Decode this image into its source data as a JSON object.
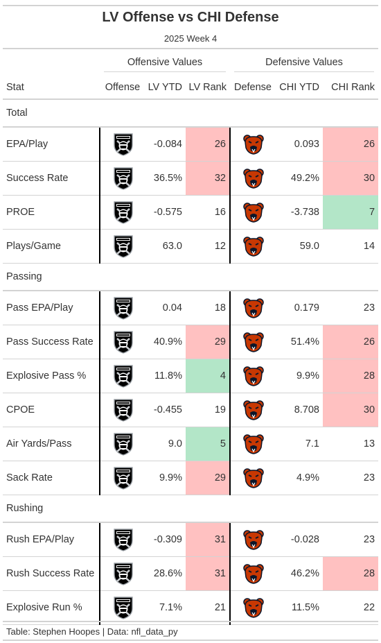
{
  "header": {
    "title": "LV Offense vs CHI Defense",
    "subtitle": "2025 Week 4"
  },
  "spanners": {
    "offense": "Offensive Values",
    "defense": "Defensive Values"
  },
  "columns": [
    "Stat",
    "Offense",
    "LV YTD",
    "LV Rank",
    "Defense",
    "CHI YTD",
    "CHI Rank"
  ],
  "colors": {
    "bad": "#ffc1c1",
    "good": "#b3e6c8",
    "raiders_logo": "#000000",
    "bears_logo_orange": "#c83803",
    "bears_logo_navy": "#0b162a"
  },
  "groups": [
    {
      "name": "Total",
      "rows": [
        {
          "stat": "EPA/Play",
          "lv_ytd": "-0.084",
          "lv_rank": "26",
          "lv_hl": "bad",
          "chi_ytd": "0.093",
          "chi_rank": "26",
          "chi_hl": "bad"
        },
        {
          "stat": "Success Rate",
          "lv_ytd": "36.5%",
          "lv_rank": "32",
          "lv_hl": "bad",
          "chi_ytd": "49.2%",
          "chi_rank": "30",
          "chi_hl": "bad"
        },
        {
          "stat": "PROE",
          "lv_ytd": "-0.575",
          "lv_rank": "16",
          "lv_hl": "",
          "chi_ytd": "-3.738",
          "chi_rank": "7",
          "chi_hl": "good"
        },
        {
          "stat": "Plays/Game",
          "lv_ytd": "63.0",
          "lv_rank": "12",
          "lv_hl": "",
          "chi_ytd": "59.0",
          "chi_rank": "14",
          "chi_hl": ""
        }
      ]
    },
    {
      "name": "Passing",
      "rows": [
        {
          "stat": "Pass EPA/Play",
          "lv_ytd": "0.04",
          "lv_rank": "18",
          "lv_hl": "",
          "chi_ytd": "0.179",
          "chi_rank": "23",
          "chi_hl": ""
        },
        {
          "stat": "Pass Success Rate",
          "lv_ytd": "40.9%",
          "lv_rank": "29",
          "lv_hl": "bad",
          "chi_ytd": "51.4%",
          "chi_rank": "26",
          "chi_hl": "bad"
        },
        {
          "stat": "Explosive Pass %",
          "lv_ytd": "11.8%",
          "lv_rank": "4",
          "lv_hl": "good",
          "chi_ytd": "9.9%",
          "chi_rank": "28",
          "chi_hl": "bad"
        },
        {
          "stat": "CPOE",
          "lv_ytd": "-0.455",
          "lv_rank": "19",
          "lv_hl": "",
          "chi_ytd": "8.708",
          "chi_rank": "30",
          "chi_hl": "bad"
        },
        {
          "stat": "Air Yards/Pass",
          "lv_ytd": "9.0",
          "lv_rank": "5",
          "lv_hl": "good",
          "chi_ytd": "7.1",
          "chi_rank": "13",
          "chi_hl": ""
        },
        {
          "stat": "Sack Rate",
          "lv_ytd": "9.9%",
          "lv_rank": "29",
          "lv_hl": "bad",
          "chi_ytd": "4.9%",
          "chi_rank": "23",
          "chi_hl": ""
        }
      ]
    },
    {
      "name": "Rushing",
      "rows": [
        {
          "stat": "Rush EPA/Play",
          "lv_ytd": "-0.309",
          "lv_rank": "31",
          "lv_hl": "bad",
          "chi_ytd": "-0.028",
          "chi_rank": "23",
          "chi_hl": ""
        },
        {
          "stat": "Rush Success Rate",
          "lv_ytd": "28.6%",
          "lv_rank": "31",
          "lv_hl": "bad",
          "chi_ytd": "46.2%",
          "chi_rank": "28",
          "chi_hl": "bad"
        },
        {
          "stat": "Explosive Run %",
          "lv_ytd": "7.1%",
          "lv_rank": "21",
          "lv_hl": "",
          "chi_ytd": "11.5%",
          "chi_rank": "22",
          "chi_hl": ""
        }
      ]
    }
  ],
  "offense_logo_icon": "raiders-logo-icon",
  "defense_logo_icon": "bears-logo-icon",
  "footer": "Table: Stephen Hoopes | Data: nfl_data_py"
}
